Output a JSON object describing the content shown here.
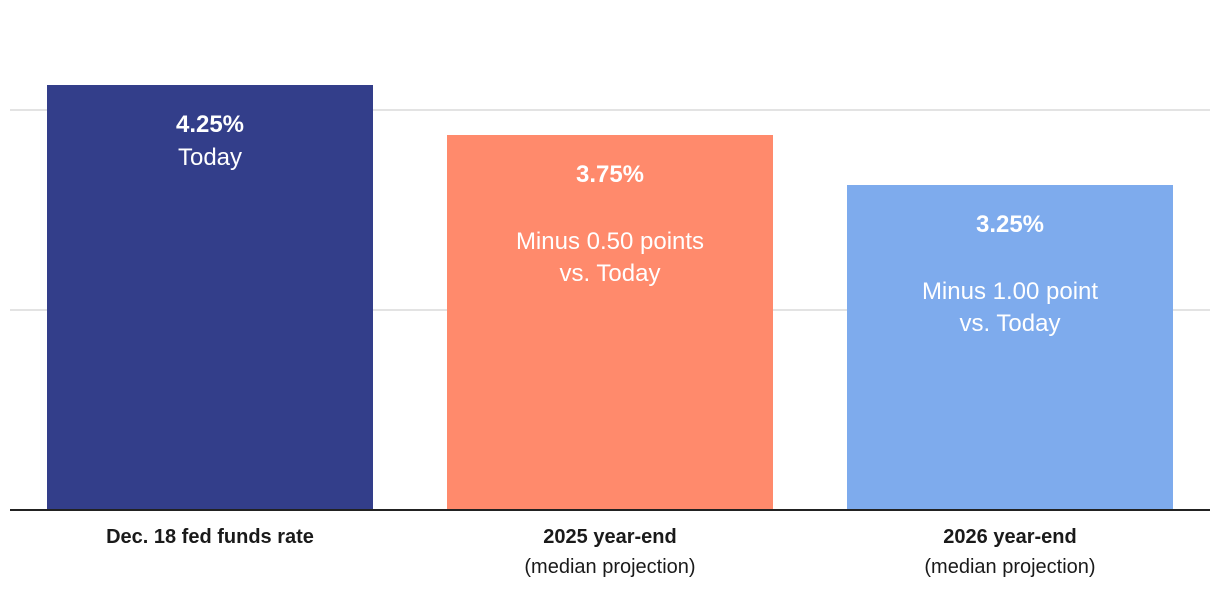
{
  "chart_data": {
    "type": "bar",
    "title": "",
    "xlabel": "",
    "ylabel": "",
    "ylim": [
      0,
      4.5
    ],
    "grid": true,
    "legend": "none",
    "categories": [
      {
        "label": "Dec. 18 fed funds rate",
        "sublabel": ""
      },
      {
        "label": "2025 year-end",
        "sublabel": "(median projection)"
      },
      {
        "label": "2026 year-end",
        "sublabel": "(median projection)"
      }
    ],
    "values": [
      4.25,
      3.75,
      3.25
    ],
    "data_labels": [
      {
        "value": "4.25%",
        "note": [
          "Today"
        ]
      },
      {
        "value": "3.75%",
        "note": [
          "Minus 0.50 points",
          "vs. Today"
        ]
      },
      {
        "value": "3.25%",
        "note": [
          "Minus 1.00 point",
          "vs. Today"
        ]
      }
    ],
    "colors": [
      "#333e8a",
      "#ff8a6c",
      "#7eabed"
    ]
  }
}
